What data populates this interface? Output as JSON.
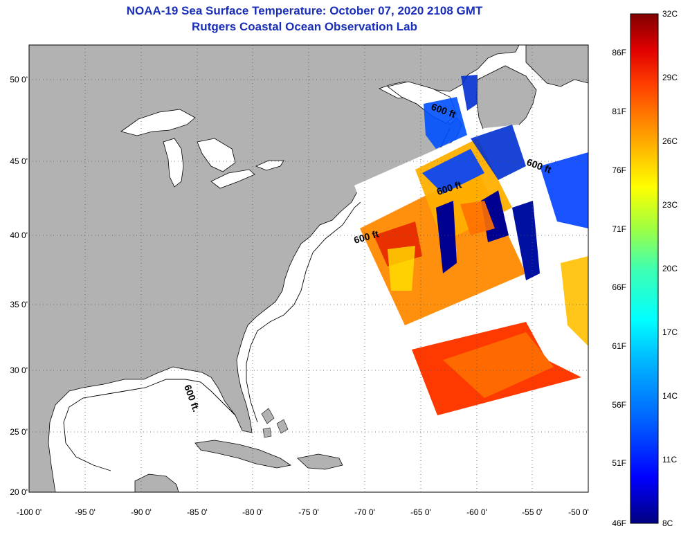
{
  "title_line1": "NOAA-19 Sea Surface Temperature:  October 07, 2020 2108 GMT",
  "title_line2": "Rutgers Coastal Ocean Observation Lab",
  "map": {
    "lon_range": [
      -100,
      -50
    ],
    "lat_range": [
      20,
      52.5
    ],
    "lon_ticks": [
      {
        "value": -100,
        "label": "-100 0'"
      },
      {
        "value": -95,
        "label": "-95 0'"
      },
      {
        "value": -90,
        "label": "-90 0'"
      },
      {
        "value": -85,
        "label": "-85 0'"
      },
      {
        "value": -80,
        "label": "-80 0'"
      },
      {
        "value": -75,
        "label": "-75 0'"
      },
      {
        "value": -70,
        "label": "-70 0'"
      },
      {
        "value": -65,
        "label": "-65 0'"
      },
      {
        "value": -60,
        "label": "-60 0'"
      },
      {
        "value": -55,
        "label": "-55 0'"
      },
      {
        "value": -50,
        "label": "-50 0'"
      }
    ],
    "lat_ticks": [
      {
        "value": 50,
        "label": "50 0'"
      },
      {
        "value": 45,
        "label": "45 0'"
      },
      {
        "value": 40,
        "label": "40 0'"
      },
      {
        "value": 35,
        "label": "35 0'"
      },
      {
        "value": 30,
        "label": "30 0'"
      },
      {
        "value": 25,
        "label": "25 0'"
      },
      {
        "value": 20,
        "label": "20 0'"
      }
    ],
    "grid": "dotted",
    "land_color": "#b2b2b2",
    "ocean_color": "#ffffff",
    "isobath_labels": [
      {
        "text": "600 ft",
        "lon": -67,
        "lat": 48.5
      },
      {
        "text": "600 ft",
        "lon": -53,
        "lat": 44.5
      },
      {
        "text": "600 ft",
        "lon": -65,
        "lat": 43.3
      },
      {
        "text": "600 ft",
        "lon": -68.5,
        "lat": 39.8
      },
      {
        "text": "600 ft.",
        "lon": -84.8,
        "lat": 28.3
      }
    ]
  },
  "colorbar": {
    "min_c": 8,
    "max_c": 32,
    "celsius_labels": [
      "32C",
      "29C",
      "26C",
      "23C",
      "20C",
      "17C",
      "14C",
      "11C",
      "8C"
    ],
    "fahrenheit_labels": [
      "86F",
      "81F",
      "76F",
      "71F",
      "66F",
      "61F",
      "56F",
      "51F",
      "46F"
    ],
    "colors": [
      "#000080",
      "#0000ff",
      "#0060ff",
      "#00c0ff",
      "#00ffff",
      "#40ffb0",
      "#a0ff40",
      "#ffff00",
      "#ffa000",
      "#ff4000",
      "#e00000",
      "#800000"
    ]
  }
}
